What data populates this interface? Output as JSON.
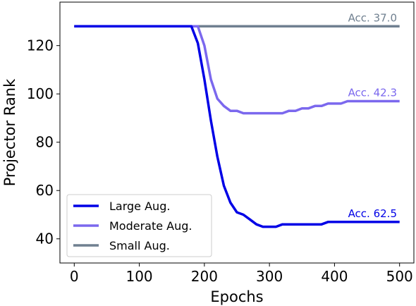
{
  "chart_data": {
    "type": "line",
    "title": "",
    "xlabel": "Epochs",
    "ylabel": "Projector Rank",
    "xlim": [
      -22,
      522
    ],
    "ylim": [
      30,
      138
    ],
    "xticks": [
      0,
      100,
      200,
      300,
      400,
      500
    ],
    "yticks": [
      40,
      60,
      80,
      100,
      120
    ],
    "xtick_labels": [
      "0",
      "100",
      "200",
      "300",
      "400",
      "500"
    ],
    "ytick_labels": [
      "40",
      "60",
      "80",
      "100",
      "120"
    ],
    "grid": false,
    "legend_position": "lower-left",
    "series": [
      {
        "name": "Large Aug.",
        "color": "#0000e6",
        "annotation": "Acc. 62.5",
        "x": [
          0,
          170,
          180,
          190,
          200,
          210,
          220,
          230,
          240,
          250,
          260,
          270,
          280,
          290,
          300,
          310,
          320,
          330,
          340,
          350,
          360,
          370,
          380,
          390,
          400,
          410,
          420,
          440,
          460,
          480,
          500
        ],
        "y": [
          128,
          128,
          128,
          121,
          106,
          89,
          74,
          62,
          55,
          51,
          50,
          48,
          46,
          45,
          45,
          45,
          46,
          46,
          46,
          46,
          46,
          46,
          46,
          47,
          47,
          47,
          47,
          47,
          47,
          47,
          47
        ]
      },
      {
        "name": "Moderate Aug.",
        "color": "#7b68ee",
        "annotation": "Acc. 42.3",
        "x": [
          0,
          170,
          180,
          190,
          200,
          210,
          220,
          230,
          240,
          250,
          260,
          270,
          280,
          290,
          300,
          310,
          320,
          330,
          340,
          350,
          360,
          370,
          380,
          390,
          400,
          410,
          420,
          440,
          460,
          480,
          500
        ],
        "y": [
          128,
          128,
          128,
          128,
          120,
          106,
          98,
          95,
          93,
          93,
          92,
          92,
          92,
          92,
          92,
          92,
          92,
          93,
          93,
          94,
          94,
          95,
          95,
          96,
          96,
          96,
          97,
          97,
          97,
          97,
          97
        ]
      },
      {
        "name": "Small Aug.",
        "color": "#708090",
        "annotation": "Acc. 37.0",
        "x": [
          0,
          100,
          200,
          300,
          400,
          500
        ],
        "y": [
          128,
          128,
          128,
          128,
          128,
          128
        ]
      }
    ]
  }
}
